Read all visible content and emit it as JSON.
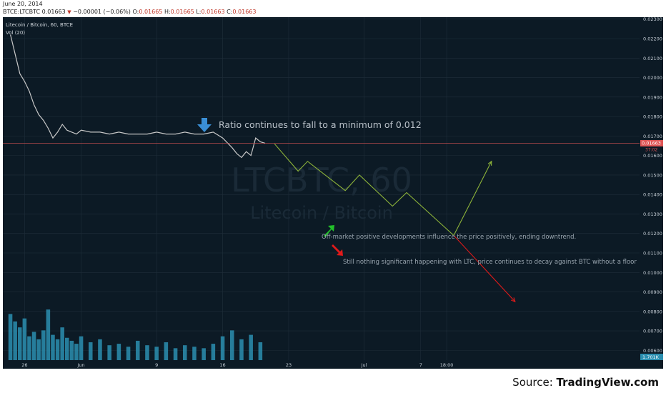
{
  "header": {
    "date": "June 20, 2014",
    "symbol": "BTCE:LTCBTC",
    "last": "0.01663",
    "change": "−0.00001 (−0.06%)",
    "o_label": "O:",
    "o": "0.01665",
    "h_label": "H:",
    "h": "0.01665",
    "l_label": "L:",
    "l": "0.01663",
    "c_label": "C:",
    "c": "0.01663"
  },
  "legend": {
    "series": "Litecoin / Bitcoin, 60, BTCE",
    "volume": "Vol (20)"
  },
  "watermark": {
    "main": "LTCBTC, 60",
    "sub": "Litecoin / Bitcoin"
  },
  "colors": {
    "background": "#0c1a25",
    "grid": "#1f2e3a",
    "price_line": "#c8c8c8",
    "volume": "#2b8fb0",
    "projection": "#8db33a",
    "bear": "#e01a1a",
    "bull": "#22c02a",
    "down_arrow": "#3a8fd6",
    "last_price_tag": "#e05656",
    "volume_tag": "#2b8fb0"
  },
  "annotations": {
    "ratio_text": "Ratio continues to fall to a minimum of 0.012",
    "bull_text": "Off-market positive developments influence the price positively, ending downtrend.",
    "bear_text": "Still nothing significant happening with LTC, price continues to decay against BTC without a floor",
    "down_arrow_icon": "arrow-down-icon",
    "bull_arrow_icon": "arrow-up-right-icon",
    "bear_arrow_icon": "arrow-down-right-icon"
  },
  "source": {
    "prefix": "Source: ",
    "name": "TradingView.com"
  },
  "chart_data": {
    "type": "line",
    "ylim": [
      0.0055,
      0.0231
    ],
    "y_ticks": [
      "0.02300",
      "0.02200",
      "0.02100",
      "0.02000",
      "0.01900",
      "0.01800",
      "0.01700",
      "0.01600",
      "0.01500",
      "0.01400",
      "0.01300",
      "0.01200",
      "0.01100",
      "0.01000",
      "0.00900",
      "0.00800",
      "0.00700",
      "0.00600"
    ],
    "y_tick_values": [
      0.023,
      0.022,
      0.021,
      0.02,
      0.019,
      0.018,
      0.017,
      0.016,
      0.015,
      0.014,
      0.013,
      0.012,
      0.011,
      0.01,
      0.009,
      0.008,
      0.007,
      0.006
    ],
    "x_ticks": [
      "26",
      "Jun",
      "9",
      "16",
      "23",
      "Jul",
      "7",
      "18:00"
    ],
    "x_tick_days": [
      -6,
      0,
      8,
      15,
      22,
      30,
      36,
      38.75
    ],
    "last_price_label": "0.01663",
    "last_price": 0.01663,
    "countdown_label": "37:02",
    "volume_label": "1.701K",
    "price_series": {
      "name": "",
      "x_days": [
        -7.5,
        -7,
        -6.5,
        -6,
        -5.5,
        -5,
        -4.5,
        -4,
        -3.5,
        -3,
        -2.5,
        -2,
        -1.5,
        -1,
        -0.5,
        0,
        1,
        2,
        3,
        4,
        5,
        6,
        7,
        8,
        9,
        10,
        11,
        12,
        13,
        14,
        15,
        16,
        16.5,
        17,
        17.5,
        18,
        18.5,
        19,
        19.5
      ],
      "values": [
        0.0222,
        0.0212,
        0.0202,
        0.0198,
        0.0193,
        0.0186,
        0.0181,
        0.0178,
        0.0174,
        0.0169,
        0.0172,
        0.0176,
        0.0173,
        0.0172,
        0.0171,
        0.0173,
        0.0172,
        0.0172,
        0.0171,
        0.0172,
        0.0171,
        0.0171,
        0.0171,
        0.0172,
        0.0171,
        0.0171,
        0.0172,
        0.0171,
        0.0171,
        0.0172,
        0.0169,
        0.0164,
        0.0161,
        0.0159,
        0.0162,
        0.016,
        0.0169,
        0.0167,
        0.01663
      ]
    },
    "volume_series": {
      "name": "",
      "x_days": [
        -7.5,
        -7,
        -6.5,
        -6,
        -5.5,
        -5,
        -4.5,
        -4,
        -3.5,
        -3,
        -2.5,
        -2,
        -1.5,
        -1,
        -0.5,
        0,
        1,
        2,
        3,
        4,
        5,
        6,
        7,
        8,
        9,
        10,
        11,
        12,
        13,
        14,
        15,
        16,
        17,
        18,
        19
      ],
      "values": [
        3.1,
        2.6,
        2.2,
        2.8,
        1.6,
        1.9,
        1.4,
        2.0,
        3.4,
        1.7,
        1.4,
        2.2,
        1.5,
        1.3,
        1.1,
        1.6,
        1.2,
        1.4,
        1.0,
        1.1,
        0.9,
        1.3,
        1.0,
        0.9,
        1.2,
        0.8,
        1.0,
        0.9,
        0.8,
        1.1,
        1.6,
        2.0,
        1.4,
        1.7,
        1.2
      ]
    },
    "projection_path": {
      "name": "",
      "x_days": [
        20.5,
        23,
        24,
        28,
        29.5,
        33,
        34.5,
        39.5,
        43.5
      ],
      "values": [
        0.0166,
        0.0152,
        0.0157,
        0.0142,
        0.015,
        0.0134,
        0.0141,
        0.0119,
        0.0157
      ]
    },
    "bear_path": {
      "name": "",
      "x_days": [
        39.5,
        46
      ],
      "values": [
        0.0119,
        0.0085
      ]
    }
  }
}
